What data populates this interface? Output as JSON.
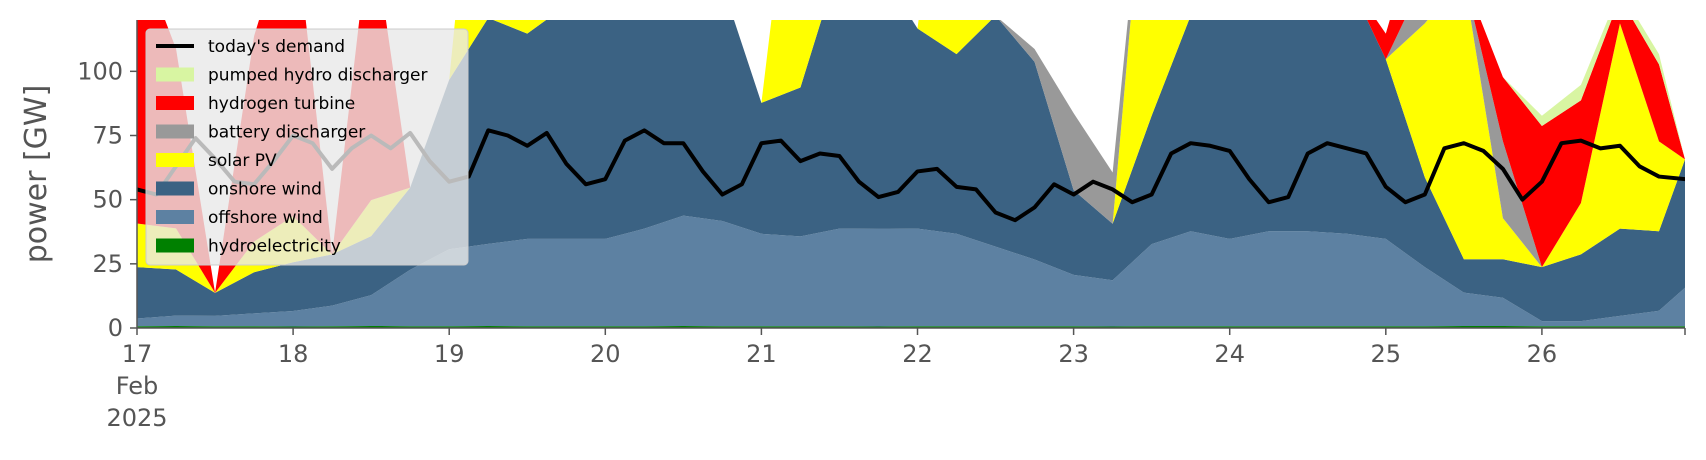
{
  "chart_data": {
    "type": "area",
    "ylabel": "power [GW]",
    "ylim": [
      0,
      120
    ],
    "xlim": [
      0,
      238
    ],
    "y_ticks": [
      0,
      25,
      50,
      75,
      100
    ],
    "x_ticks": [
      {
        "x": 0,
        "lines": [
          "17",
          "Feb",
          "2025"
        ]
      },
      {
        "x": 24,
        "lines": [
          "18"
        ]
      },
      {
        "x": 48,
        "lines": [
          "19"
        ]
      },
      {
        "x": 72,
        "lines": [
          "20"
        ]
      },
      {
        "x": 96,
        "lines": [
          "21"
        ]
      },
      {
        "x": 120,
        "lines": [
          "22"
        ]
      },
      {
        "x": 144,
        "lines": [
          "23"
        ]
      },
      {
        "x": 168,
        "lines": [
          "24"
        ]
      },
      {
        "x": 192,
        "lines": [
          "25"
        ]
      },
      {
        "x": 216,
        "lines": [
          "26"
        ]
      }
    ],
    "x_hours": [
      0,
      6,
      12,
      18,
      24,
      30,
      36,
      42,
      48,
      54,
      60,
      66,
      72,
      78,
      84,
      90,
      96,
      102,
      108,
      114,
      120,
      126,
      132,
      138,
      144,
      150,
      156,
      162,
      168,
      174,
      180,
      186,
      192,
      198,
      204,
      210,
      216,
      222,
      228,
      234,
      238
    ],
    "grid": false,
    "legend_position": "top-left",
    "stack_series": [
      {
        "name": "hydroelectricity",
        "color": "#008000",
        "values": [
          0.7,
          0.8,
          0.7,
          0.7,
          0.6,
          0.7,
          0.8,
          0.7,
          0.7,
          0.8,
          0.7,
          0.7,
          0.7,
          0.7,
          0.8,
          0.7,
          0.7,
          0.7,
          0.7,
          0.6,
          0.7,
          0.7,
          0.7,
          0.7,
          0.7,
          0.6,
          0.7,
          0.7,
          0.7,
          0.7,
          0.7,
          0.7,
          0.7,
          0.7,
          0.8,
          0.8,
          0.7,
          0.7,
          0.7,
          0.7,
          0.7
        ]
      },
      {
        "name": "offshore wind",
        "color": "#5d81a2",
        "values": [
          3,
          4,
          4,
          5,
          6,
          8,
          12,
          22,
          30,
          32,
          34,
          34,
          34,
          38,
          43,
          41,
          36,
          35,
          38,
          38,
          38,
          36,
          31,
          26,
          20,
          18,
          32,
          37,
          34,
          37,
          37,
          36,
          34,
          23,
          13,
          11,
          2,
          2,
          4,
          6,
          15
        ]
      },
      {
        "name": "onshore wind",
        "color": "#3b6283",
        "values": [
          20,
          18,
          9,
          16,
          19,
          20,
          23,
          32,
          66,
          88,
          80,
          91,
          98,
          95,
          107,
          92,
          51,
          58,
          104,
          102,
          78,
          70,
          90,
          77,
          33,
          22,
          50,
          84,
          95,
          104,
          104,
          100,
          70,
          35,
          13,
          15,
          21,
          26,
          34,
          31,
          50
        ]
      },
      {
        "name": "solar PV",
        "color": "#ffff00",
        "values": [
          17,
          16,
          0,
          12,
          18,
          0,
          14,
          0,
          0,
          130,
          70,
          0,
          0,
          125,
          0,
          0,
          0,
          120,
          0,
          0,
          0,
          130,
          0,
          0,
          0,
          0,
          130,
          0,
          0,
          0,
          130,
          0,
          0,
          60,
          110,
          16,
          0,
          20,
          80,
          35,
          0
        ]
      },
      {
        "name": "battery discharger",
        "color": "#999999",
        "values": [
          0,
          0,
          0,
          0,
          0,
          0,
          0,
          0,
          0,
          0,
          0,
          0,
          2,
          6,
          0,
          0,
          0,
          0,
          0,
          0,
          0,
          0,
          0,
          5,
          30,
          20,
          0,
          0,
          0,
          0,
          0,
          0,
          0,
          18,
          0,
          30,
          0,
          0,
          0,
          0,
          0
        ]
      },
      {
        "name": "hydrogen turbine",
        "color": "#ff0000",
        "values": [
          108,
          70,
          0,
          80,
          120,
          0,
          110,
          0,
          0,
          0,
          0,
          0,
          0,
          0,
          0,
          0,
          0,
          0,
          0,
          0,
          0,
          0,
          0,
          0,
          0,
          0,
          0,
          0,
          0,
          0,
          0,
          0,
          10,
          30,
          0,
          25,
          55,
          40,
          10,
          30,
          0
        ]
      },
      {
        "name": "pumped hydro discharger",
        "color": "#d8f5a2",
        "values": [
          0,
          0,
          0,
          0,
          0,
          0,
          0,
          0,
          0,
          0,
          0,
          0,
          0,
          0,
          0,
          0,
          0,
          0,
          0,
          0,
          0,
          0,
          0,
          0,
          0,
          0,
          0,
          0,
          0,
          0,
          0,
          0,
          0,
          0,
          0,
          0,
          4,
          6,
          3,
          4,
          0
        ]
      }
    ],
    "demand": {
      "name": "today's demand",
      "color": "#000000",
      "x": [
        0,
        3,
        6,
        9,
        12,
        15,
        18,
        21,
        24,
        27,
        30,
        33,
        36,
        39,
        42,
        45,
        48,
        51,
        54,
        57,
        60,
        63,
        66,
        69,
        72,
        75,
        78,
        81,
        84,
        87,
        90,
        93,
        96,
        99,
        102,
        105,
        108,
        111,
        114,
        117,
        120,
        123,
        126,
        129,
        132,
        135,
        138,
        141,
        144,
        147,
        150,
        153,
        156,
        159,
        162,
        165,
        168,
        171,
        174,
        177,
        180,
        183,
        186,
        189,
        192,
        195,
        198,
        201,
        204,
        207,
        210,
        213,
        216,
        219,
        222,
        225,
        228,
        231,
        234,
        238
      ],
      "values": [
        54,
        52,
        63,
        74,
        66,
        57,
        56,
        65,
        75,
        72,
        62,
        70,
        75,
        70,
        76,
        65,
        57,
        59,
        77,
        75,
        71,
        76,
        64,
        56,
        58,
        73,
        77,
        72,
        72,
        61,
        52,
        56,
        72,
        73,
        65,
        68,
        67,
        57,
        51,
        53,
        61,
        62,
        55,
        54,
        45,
        42,
        47,
        56,
        52,
        57,
        54,
        49,
        52,
        68,
        72,
        71,
        69,
        58,
        49,
        51,
        68,
        72,
        70,
        68,
        55,
        49,
        52,
        70,
        72,
        69,
        62,
        50,
        57,
        72,
        73,
        70,
        71,
        63,
        59,
        58
      ]
    }
  },
  "legend_items": [
    {
      "label": "today's demand",
      "color": "#000000",
      "kind": "line"
    },
    {
      "label": "pumped hydro discharger",
      "color": "#d8f5a2",
      "kind": "patch"
    },
    {
      "label": "hydrogen turbine",
      "color": "#ff0000",
      "kind": "patch"
    },
    {
      "label": "battery discharger",
      "color": "#999999",
      "kind": "patch"
    },
    {
      "label": "solar PV",
      "color": "#ffff00",
      "kind": "patch"
    },
    {
      "label": "onshore wind",
      "color": "#3b6283",
      "kind": "patch"
    },
    {
      "label": "offshore wind",
      "color": "#5d81a2",
      "kind": "patch"
    },
    {
      "label": "hydroelectricity",
      "color": "#008000",
      "kind": "patch"
    }
  ]
}
